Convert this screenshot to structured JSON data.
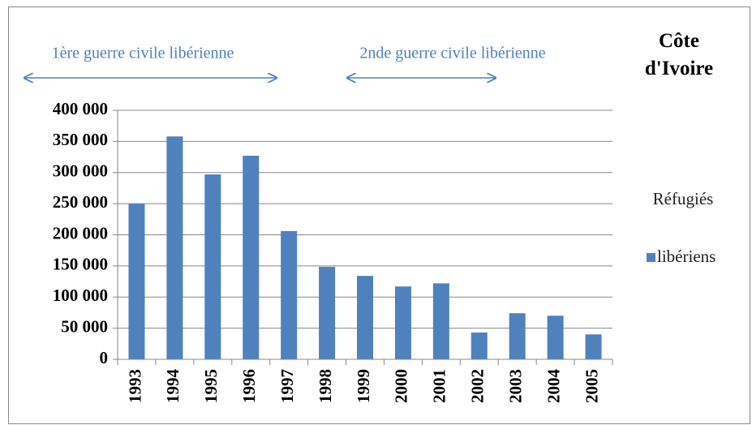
{
  "chart_data": {
    "type": "bar",
    "title": "Côte d'Ivoire",
    "annotations": [
      "1ère guerre civile libérienne",
      "2nde guerre civile libérienne"
    ],
    "legend_title": "Réfugiés",
    "categories": [
      "1993",
      "1994",
      "1995",
      "1996",
      "1997",
      "1998",
      "1999",
      "2000",
      "2001",
      "2002",
      "2003",
      "2004",
      "2005"
    ],
    "series": [
      {
        "name": "libériens",
        "color": "#4f81bd",
        "values": [
          250000,
          358000,
          297000,
          327000,
          206000,
          148500,
          134000,
          117000,
          122000,
          43000,
          74000,
          70000,
          40000
        ]
      }
    ],
    "ylim": [
      0,
      400000
    ],
    "yticks": [
      0,
      {
        "value": 50000,
        "label": "50 000"
      },
      {
        "value": 100000,
        "label": "100 000"
      },
      {
        "value": 150000,
        "label": "150 000"
      },
      {
        "value": 200000,
        "label": "200 000"
      },
      {
        "value": 250000,
        "label": "250 000"
      },
      {
        "value": 300000,
        "label": "300 000"
      },
      {
        "value": 350000,
        "label": "350 000"
      },
      {
        "value": 400000,
        "label": "400 000"
      }
    ],
    "grid": true,
    "legend": "right"
  }
}
